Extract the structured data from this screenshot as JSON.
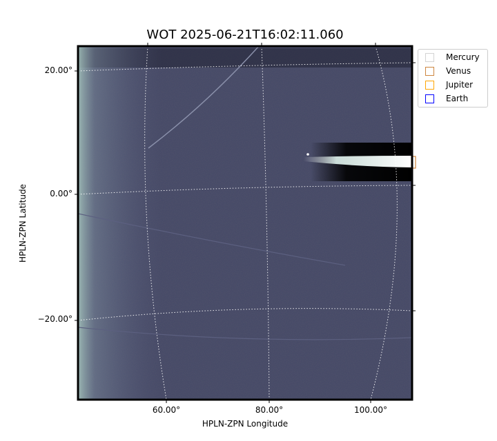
{
  "chart_data": {
    "type": "image",
    "title": "WOT 2025-06-21T16:02:11.060",
    "xlabel": "HPLN-ZPN Longitude",
    "ylabel": "HPLN-ZPN Latitude",
    "x_ticks": [
      "60.00°",
      "80.00°",
      "100.00°"
    ],
    "y_ticks": [
      "20.00°",
      "0.00°",
      "−20.00°"
    ],
    "grid": true,
    "grid_style": "dotted white",
    "colormap": "bone",
    "legend_position": "outside-top-right",
    "legend": [
      {
        "label": "Mercury",
        "color": "#d3d3d3"
      },
      {
        "label": "Venus",
        "color": "#cd853f"
      },
      {
        "label": "Jupiter",
        "color": "#ffa500"
      },
      {
        "label": "Earth",
        "color": "#0000ff"
      }
    ]
  }
}
